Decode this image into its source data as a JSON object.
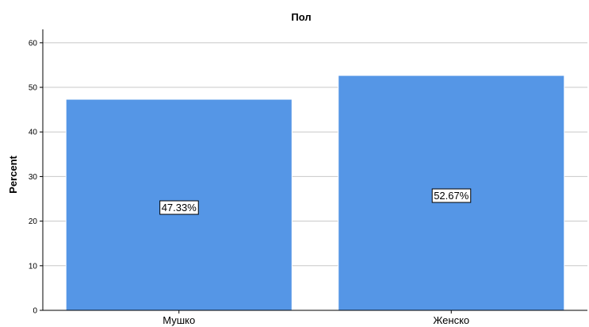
{
  "chart_data": {
    "type": "bar",
    "title": "Пол",
    "xlabel": "",
    "ylabel": "Percent",
    "categories": [
      "Мушко",
      "Женско"
    ],
    "values": [
      47.33,
      52.67
    ],
    "data_labels": [
      "47.33%",
      "52.67%"
    ],
    "ylim": [
      0,
      63
    ],
    "yticks": [
      0,
      10,
      20,
      30,
      40,
      50,
      60
    ],
    "ytick_labels": [
      "0",
      "10",
      "20",
      "30",
      "40",
      "50",
      "60"
    ],
    "grid": true,
    "legend": "none",
    "bar_color": "#5596e6",
    "bar_border_color": "#ffffff",
    "grid_color": "#c8c8c8",
    "axis_color": "#000000"
  }
}
